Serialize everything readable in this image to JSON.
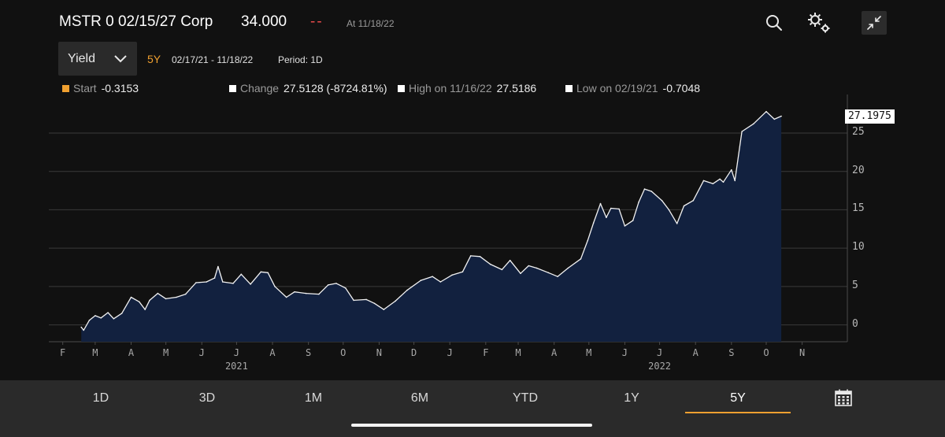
{
  "header": {
    "title": "MSTR 0 02/15/27 Corp",
    "price": "34.000",
    "change": "--",
    "as_of": "At 11/18/22"
  },
  "controls": {
    "field_selected": "Yield",
    "range": "5Y",
    "dates": "02/17/21 - 11/18/22",
    "period": "Period: 1D"
  },
  "stats": {
    "start_label": "Start",
    "start_value": "-0.3153",
    "change_label": "Change",
    "change_value": "27.5128 (-8724.81%)",
    "high_label": "High on 11/16/22",
    "high_value": "27.5186",
    "low_label": "Low on 02/19/21",
    "low_value": "-0.7048",
    "start_color": "#f0a030"
  },
  "tabs": [
    "1D",
    "3D",
    "1M",
    "6M",
    "YTD",
    "1Y",
    "5Y"
  ],
  "active_tab": "5Y",
  "accent_color": "#f0a030",
  "area_fill": "#12213f",
  "chart_data": {
    "type": "area",
    "last_value_label": "27.1975",
    "y_ticks": [
      "0",
      "5",
      "10",
      "15",
      "20",
      "25"
    ],
    "ylim": [
      -2.2,
      29
    ],
    "x_month_labels": [
      "F",
      "M",
      "A",
      "M",
      "J",
      "J",
      "A",
      "S",
      "O",
      "N",
      "D",
      "J",
      "F",
      "M",
      "A",
      "M",
      "J",
      "J",
      "A",
      "S",
      "O",
      "N"
    ],
    "x_month_dates": [
      "2021-02-01",
      "2021-03-01",
      "2021-04-01",
      "2021-05-01",
      "2021-06-01",
      "2021-07-01",
      "2021-08-01",
      "2021-09-01",
      "2021-10-01",
      "2021-11-01",
      "2021-12-01",
      "2022-01-01",
      "2022-02-01",
      "2022-03-01",
      "2022-04-01",
      "2022-05-01",
      "2022-06-01",
      "2022-07-01",
      "2022-08-01",
      "2022-09-01",
      "2022-10-01",
      "2022-11-01"
    ],
    "year_labels": [
      "2021",
      "2022"
    ],
    "year_dates": [
      "2021-07-01",
      "2022-07-01"
    ],
    "x_start": "2021-01-20",
    "x_end": "2022-12-10",
    "series": [
      {
        "points": [
          [
            "2021-02-17",
            -0.3
          ],
          [
            "2021-02-19",
            -0.7
          ],
          [
            "2021-02-24",
            0.6
          ],
          [
            "2021-03-01",
            1.2
          ],
          [
            "2021-03-06",
            0.9
          ],
          [
            "2021-03-12",
            1.6
          ],
          [
            "2021-03-17",
            0.8
          ],
          [
            "2021-03-24",
            1.5
          ],
          [
            "2021-04-01",
            3.6
          ],
          [
            "2021-04-08",
            3.0
          ],
          [
            "2021-04-13",
            2.0
          ],
          [
            "2021-04-17",
            3.2
          ],
          [
            "2021-04-24",
            4.1
          ],
          [
            "2021-05-01",
            3.4
          ],
          [
            "2021-05-10",
            3.6
          ],
          [
            "2021-05-18",
            4.0
          ],
          [
            "2021-05-27",
            5.5
          ],
          [
            "2021-06-05",
            5.6
          ],
          [
            "2021-06-12",
            6.1
          ],
          [
            "2021-06-15",
            7.6
          ],
          [
            "2021-06-19",
            5.6
          ],
          [
            "2021-06-28",
            5.4
          ],
          [
            "2021-07-05",
            6.6
          ],
          [
            "2021-07-13",
            5.3
          ],
          [
            "2021-07-22",
            6.9
          ],
          [
            "2021-07-28",
            6.8
          ],
          [
            "2021-08-03",
            5.0
          ],
          [
            "2021-08-13",
            3.6
          ],
          [
            "2021-08-20",
            4.3
          ],
          [
            "2021-08-30",
            4.1
          ],
          [
            "2021-09-10",
            4.0
          ],
          [
            "2021-09-18",
            5.2
          ],
          [
            "2021-09-25",
            5.4
          ],
          [
            "2021-10-03",
            4.8
          ],
          [
            "2021-10-10",
            3.2
          ],
          [
            "2021-10-21",
            3.3
          ],
          [
            "2021-10-28",
            2.8
          ],
          [
            "2021-11-05",
            2.0
          ],
          [
            "2021-11-15",
            3.1
          ],
          [
            "2021-11-25",
            4.5
          ],
          [
            "2021-12-07",
            5.8
          ],
          [
            "2021-12-17",
            6.3
          ],
          [
            "2021-12-24",
            5.6
          ],
          [
            "2022-01-03",
            6.5
          ],
          [
            "2022-01-12",
            6.9
          ],
          [
            "2022-01-19",
            9.0
          ],
          [
            "2022-01-27",
            8.9
          ],
          [
            "2022-02-05",
            7.9
          ],
          [
            "2022-02-15",
            7.2
          ],
          [
            "2022-02-22",
            8.4
          ],
          [
            "2022-03-03",
            6.7
          ],
          [
            "2022-03-10",
            7.7
          ],
          [
            "2022-03-17",
            7.4
          ],
          [
            "2022-03-27",
            6.8
          ],
          [
            "2022-04-04",
            6.3
          ],
          [
            "2022-04-13",
            7.4
          ],
          [
            "2022-04-24",
            8.6
          ],
          [
            "2022-04-30",
            11.0
          ],
          [
            "2022-05-05",
            13.3
          ],
          [
            "2022-05-11",
            15.8
          ],
          [
            "2022-05-16",
            14.0
          ],
          [
            "2022-05-20",
            15.2
          ],
          [
            "2022-05-27",
            15.1
          ],
          [
            "2022-06-01",
            12.9
          ],
          [
            "2022-06-08",
            13.6
          ],
          [
            "2022-06-13",
            16.0
          ],
          [
            "2022-06-18",
            17.7
          ],
          [
            "2022-06-24",
            17.4
          ],
          [
            "2022-07-03",
            16.2
          ],
          [
            "2022-07-09",
            15.0
          ],
          [
            "2022-07-16",
            13.2
          ],
          [
            "2022-07-22",
            15.5
          ],
          [
            "2022-07-30",
            16.2
          ],
          [
            "2022-08-08",
            18.8
          ],
          [
            "2022-08-16",
            18.4
          ],
          [
            "2022-08-22",
            19.0
          ],
          [
            "2022-08-25",
            18.6
          ],
          [
            "2022-09-01",
            20.2
          ],
          [
            "2022-09-04",
            18.8
          ],
          [
            "2022-09-10",
            25.2
          ],
          [
            "2022-09-20",
            26.2
          ],
          [
            "2022-10-01",
            27.8
          ],
          [
            "2022-10-08",
            26.8
          ],
          [
            "2022-10-14",
            27.2
          ]
        ]
      }
    ]
  }
}
